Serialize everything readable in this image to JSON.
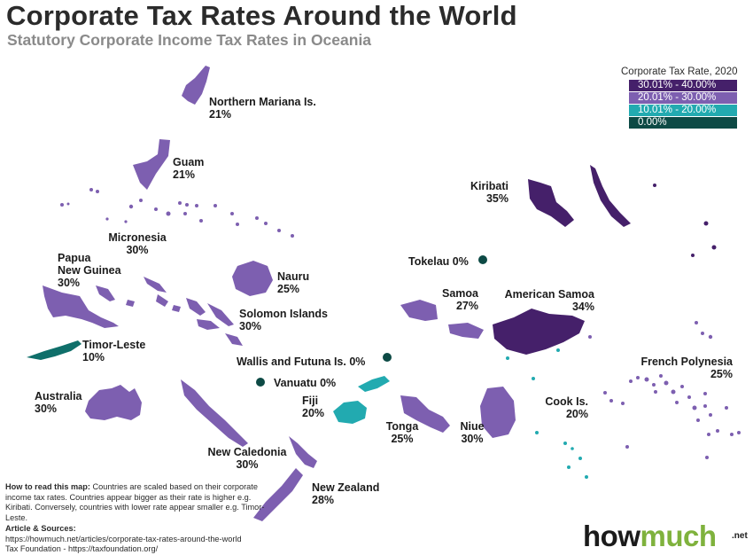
{
  "header": {
    "title": "Corporate Tax Rates Around the World",
    "subtitle": "Statutory Corporate Income Tax Rates in Oceania"
  },
  "colors": {
    "range_30_40": "#45206a",
    "range_20_30": "#7d5fb0",
    "range_10_20": "#22aab0",
    "range_0": "#0d4a45",
    "brand_green": "#7fb23d"
  },
  "legend": {
    "title": "Corporate Tax Rate, 2020",
    "items": [
      {
        "label": "30.01% - 40.00%",
        "color": "#45206a"
      },
      {
        "label": "20.01% - 30.00%",
        "color": "#7d5fb0"
      },
      {
        "label": "10.01% - 20.00%",
        "color": "#22aab0"
      },
      {
        "label": "0.00%",
        "color": "#0d4a45"
      }
    ]
  },
  "regions": [
    {
      "name": "Northern Mariana Is.",
      "rate": "21%"
    },
    {
      "name": "Guam",
      "rate": "21%"
    },
    {
      "name": "Micronesia",
      "rate": "30%"
    },
    {
      "name": "Papua",
      "name2": "New Guinea",
      "rate": "30%"
    },
    {
      "name": "Nauru",
      "rate": "25%"
    },
    {
      "name": "Solomon Islands",
      "rate": "30%"
    },
    {
      "name": "Timor-Leste",
      "rate": "10%"
    },
    {
      "name": "Australia",
      "rate": "30%"
    },
    {
      "name": "Wallis and Futuna Is.",
      "rate": "0%"
    },
    {
      "name": "Vanuatu",
      "rate": "0%"
    },
    {
      "name": "Fiji",
      "rate": "20%"
    },
    {
      "name": "Tonga",
      "rate": "25%"
    },
    {
      "name": "Niue",
      "rate": "30%"
    },
    {
      "name": "New Caledonia",
      "rate": "30%"
    },
    {
      "name": "New Zealand",
      "rate": "28%"
    },
    {
      "name": "Kiribati",
      "rate": "35%"
    },
    {
      "name": "Tokelau",
      "rate": "0%"
    },
    {
      "name": "Samoa",
      "rate": "27%"
    },
    {
      "name": "American Samoa",
      "rate": "34%"
    },
    {
      "name": "Cook Is.",
      "rate": "20%"
    },
    {
      "name": "French Polynesia",
      "rate": "25%"
    }
  ],
  "howto": {
    "head": "How to read this map:",
    "text": " Countries are scaled based on their corporate income tax rates. Countries appear bigger as their rate is higher e.g. Kiribati. Conversely, countries with lower rate appear smaller e.g. Timor-Leste."
  },
  "sources": {
    "head": "Article & Sources:",
    "line1": "https://howmuch.net/articles/corporate-tax-rates-around-the-world",
    "line2": "Tax Foundation - https://taxfoundation.org/"
  },
  "logo": {
    "part1": "how",
    "part2": "much",
    "suffix": ".net"
  }
}
